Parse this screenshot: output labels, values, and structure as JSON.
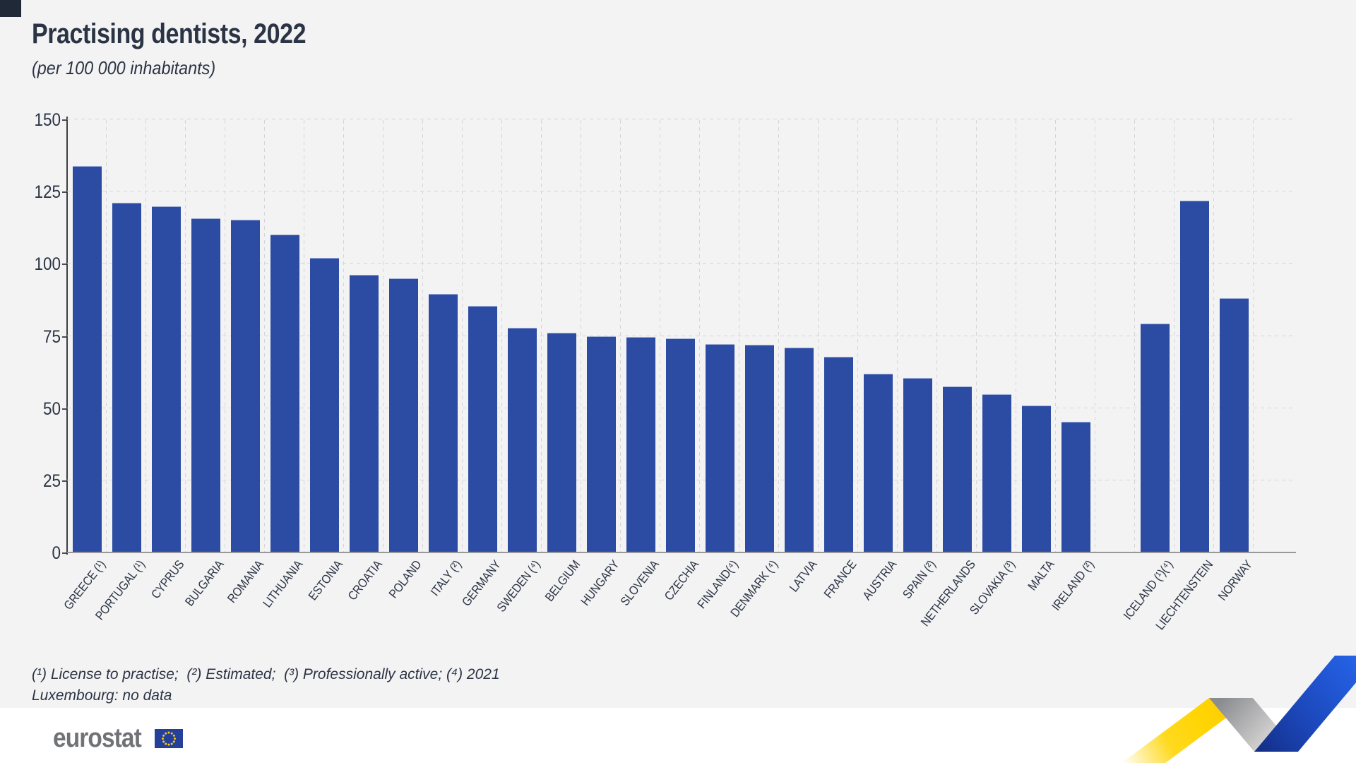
{
  "header": {
    "title": "Practising dentists, 2022",
    "subtitle": "(per 100 000 inhabitants)"
  },
  "footnotes": {
    "line1": "(¹) License to practise;  (²) Estimated;  (³) Professionally active; (⁴) 2021",
    "line2": "Luxembourg: no data"
  },
  "logo": {
    "text": "eurostat",
    "flag": "eu-flag"
  },
  "colors": {
    "bar": "#2c4ba3",
    "background": "#f3f3f4",
    "text": "#2b3444",
    "logo_grey": "#717276",
    "flag_blue": "#24409a",
    "star_yellow": "#ffcc00",
    "ribbon_yellow": "#ffd505",
    "ribbon_blue": "#2563e8"
  },
  "chart_data": {
    "type": "bar",
    "title": "Practising dentists, 2022",
    "unit": "per 100 000 inhabitants",
    "xlabel": "",
    "ylabel": "",
    "ylim": [
      0,
      150
    ],
    "yticks": [
      0,
      25,
      50,
      75,
      100,
      125,
      150
    ],
    "grid": "dashed",
    "legend": "none",
    "bar_color": "#2c4ba3",
    "gap_after_index": 25,
    "gap_note": "empty slot between IRELAND and ICELAND separates EU from EFTA countries",
    "categories": [
      "GREECE (¹)",
      "PORTUGAL (¹)",
      "CYPRUS",
      "BULGARIA",
      "ROMANIA",
      "LITHUANIA",
      "ESTONIA",
      "CROATIA",
      "POLAND",
      "ITALY (²)",
      "GERMANY",
      "SWEDEN (⁴)",
      "BELGIUM",
      "HUNGARY",
      "SLOVENIA",
      "CZECHIA",
      "FINLAND(⁴)",
      "DENMARK (⁴)",
      "LATVIA",
      "FRANCE",
      "AUSTRIA",
      "SPAIN (²)",
      "NETHERLANDS",
      "SLOVAKIA (³)",
      "MALTA",
      "IRELAND (²)",
      "ICELAND (¹)(⁴)",
      "LIECHTENSTEIN",
      "NORWAY"
    ],
    "values": [
      133.5,
      120.9,
      119.6,
      115.5,
      114.9,
      109.9,
      101.9,
      96.0,
      94.8,
      89.2,
      85.1,
      77.5,
      75.8,
      74.7,
      74.5,
      73.8,
      72.0,
      71.8,
      70.7,
      67.6,
      61.6,
      60.3,
      57.3,
      54.6,
      50.7,
      45.0,
      79.0,
      121.6,
      87.8
    ]
  }
}
